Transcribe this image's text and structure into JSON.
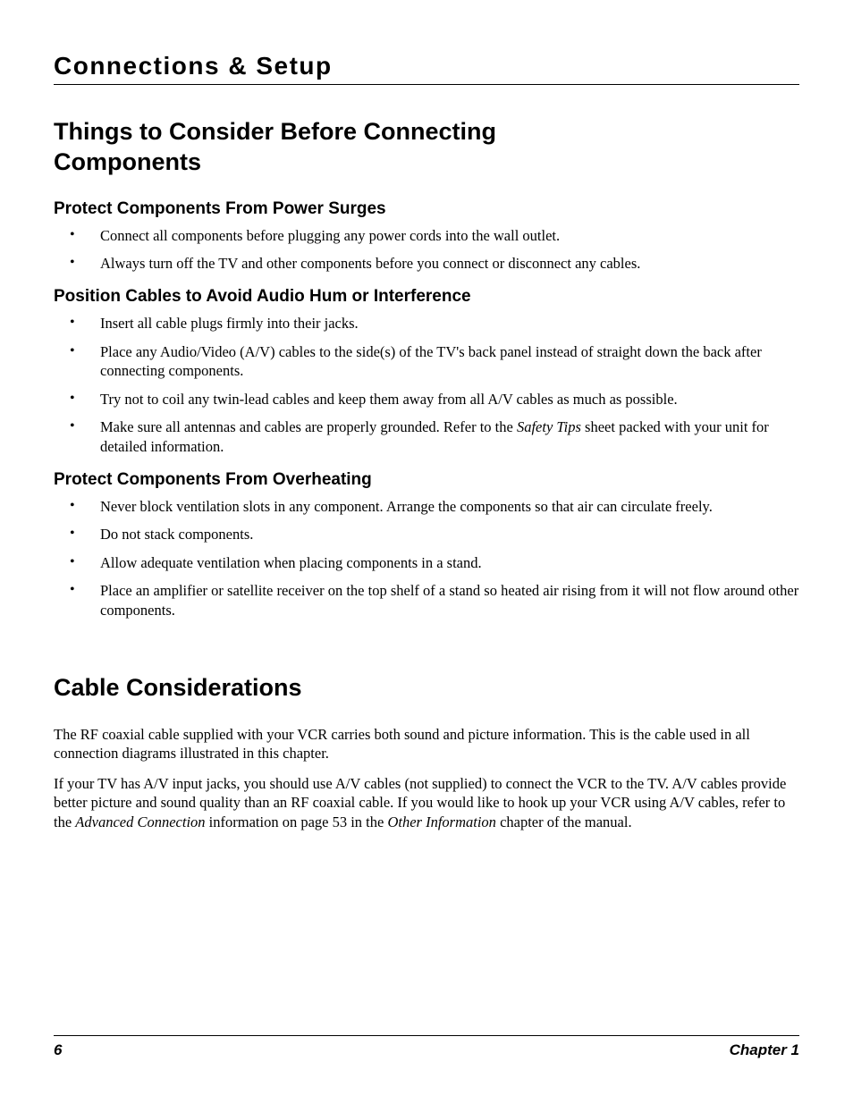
{
  "chapter_header": "Connections & Setup",
  "section1": {
    "title": "Things to Consider Before Connecting Components",
    "sub1": {
      "title": "Protect Components From Power Surges",
      "items": [
        "Connect all components before plugging any power cords into the wall outlet.",
        "Always turn off the TV and other components before you connect or disconnect any cables."
      ]
    },
    "sub2": {
      "title": "Position Cables to Avoid Audio Hum or Interference",
      "items": [
        "Insert all cable plugs firmly into their jacks.",
        "Place any Audio/Video (A/V) cables to the side(s) of the TV's back panel instead of straight down the back after connecting components.",
        "Try not to coil any twin-lead cables and keep them away from all A/V cables as much as possible.",
        "Make sure all antennas and cables are properly grounded. Refer to the __ITALIC_Safety Tips__ sheet packed with your unit for detailed information."
      ]
    },
    "sub3": {
      "title": "Protect Components From Overheating",
      "items": [
        "Never block ventilation slots in any component. Arrange the components so that air can circulate freely.",
        "Do not stack components.",
        "Allow adequate ventilation when placing components in a stand.",
        "Place an amplifier or satellite receiver on the top shelf of a stand so heated air rising from it will not flow around other components."
      ]
    }
  },
  "section2": {
    "title": "Cable Considerations",
    "para1": "The RF coaxial cable supplied with your VCR carries both sound and picture information. This is the cable used in all connection diagrams illustrated in this chapter.",
    "para2": "If your TV has A/V input jacks, you should use A/V cables (not supplied) to connect the VCR to the TV. A/V cables provide better picture and sound quality than an RF coaxial cable. If you would like to hook up your VCR using A/V cables, refer to the __ITALIC_Advanced Connection__ information on page 53 in the __ITALIC_Other Information__ chapter of the manual."
  },
  "footer": {
    "page_number": "6",
    "chapter_label": "Chapter 1"
  }
}
